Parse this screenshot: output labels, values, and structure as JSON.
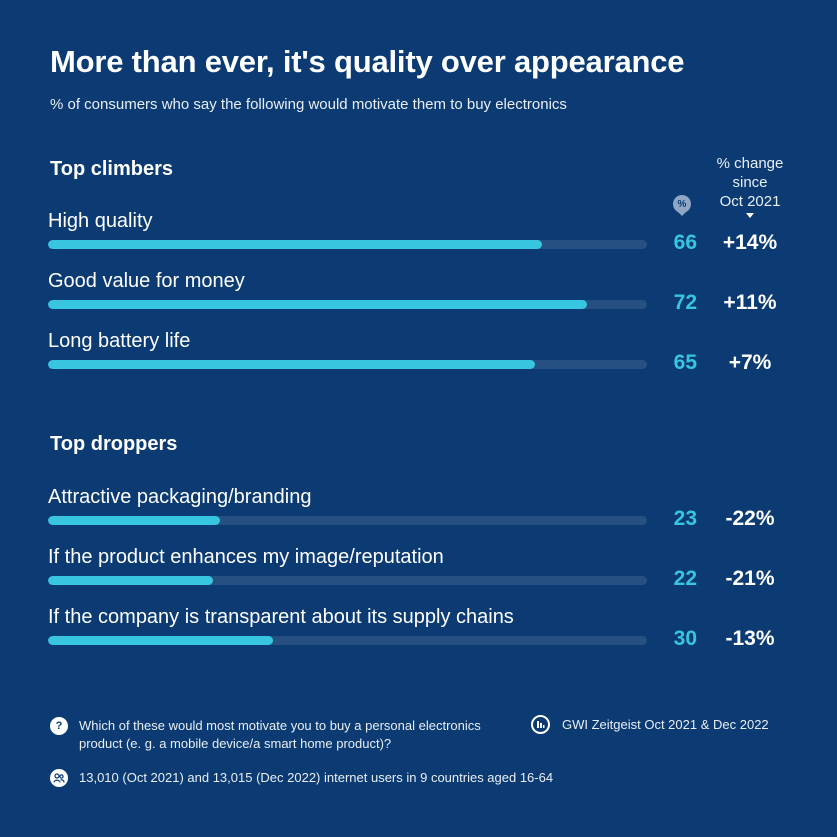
{
  "title": "More than ever, it's quality over appearance",
  "subtitle": "% of consumers who say the following would motivate them to buy electronics",
  "column_header": {
    "line1": "% change",
    "line2": "since",
    "line3": "Oct 2021",
    "pct_badge": "%"
  },
  "chart_data": {
    "type": "bar",
    "xlim": [
      0,
      80
    ],
    "value_color": "#37c5e0",
    "track_color": "#264f82",
    "sections": [
      {
        "title": "Top climbers",
        "rows": [
          {
            "label": "High quality",
            "value": 66,
            "change": "+14%"
          },
          {
            "label": "Good value for money",
            "value": 72,
            "change": "+11%"
          },
          {
            "label": "Long battery life",
            "value": 65,
            "change": "+7%"
          }
        ]
      },
      {
        "title": "Top droppers",
        "rows": [
          {
            "label": "Attractive packaging/branding",
            "value": 23,
            "change": "-22%"
          },
          {
            "label": "If the product enhances my image/reputation",
            "value": 22,
            "change": "-21%"
          },
          {
            "label": "If the company is transparent about its supply chains",
            "value": 30,
            "change": "-13%"
          }
        ]
      }
    ]
  },
  "footer": {
    "question": "Which of these would most motivate you to buy a personal electronics product (e. g. a mobile device/a smart home product)?",
    "source": "GWI Zeitgeist Oct 2021 & Dec 2022",
    "sample": "13,010 (Oct 2021) and 13,015 (Dec 2022) internet users in 9 countries aged 16-64",
    "question_icon": "question-icon",
    "source_icon": "gwi-logo-icon",
    "sample_icon": "people-icon"
  }
}
